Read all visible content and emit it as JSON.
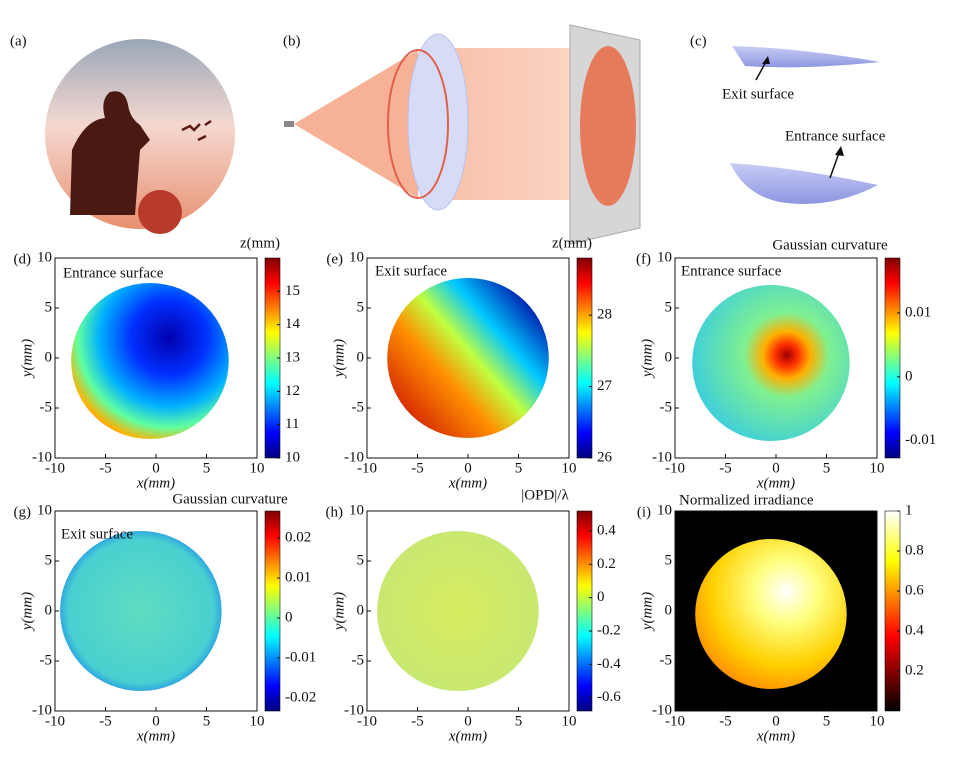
{
  "panels": [
    {
      "label": "(a)"
    },
    {
      "label": "(b)"
    },
    {
      "label": "(c)",
      "annotations": [
        "Exit surface",
        "Entrance surface"
      ]
    }
  ],
  "plots": [
    {
      "label": "(d)",
      "text": "Entrance surface",
      "colorbar_title": "z(mm)",
      "xlabel": "x(mm)",
      "ylabel": "y(mm)",
      "xlim": [
        -10,
        10
      ],
      "xticks": [
        -10,
        -5,
        0,
        5,
        10
      ],
      "ylim": [
        -10,
        10
      ],
      "yticks": [
        -10,
        -5,
        0,
        5,
        10
      ],
      "clim": [
        10,
        16
      ],
      "cticks": [
        10,
        11,
        12,
        13,
        14,
        15
      ],
      "colormap": "jet"
    },
    {
      "label": "(e)",
      "text": "Exit surface",
      "colorbar_title": "z(mm)",
      "xlabel": "x(mm)",
      "ylabel": "y(mm)",
      "xlim": [
        -10,
        10
      ],
      "xticks": [
        -10,
        -5,
        0,
        5,
        10
      ],
      "ylim": [
        -10,
        10
      ],
      "yticks": [
        -10,
        -5,
        0,
        5,
        10
      ],
      "clim": [
        26,
        28.8
      ],
      "cticks": [
        26,
        27,
        28
      ],
      "colormap": "jet"
    },
    {
      "label": "(f)",
      "text": "Entrance surface",
      "colorbar_title": "Gaussian curvature",
      "xlabel": "x(mm)",
      "ylabel": "y(mm)",
      "xlim": [
        -10,
        10
      ],
      "xticks": [
        -10,
        -5,
        0,
        5,
        10
      ],
      "ylim": [
        -10,
        10
      ],
      "yticks": [
        -10,
        -5,
        0,
        5,
        10
      ],
      "clim": [
        -0.0127,
        0.0186
      ],
      "cticks": [
        -0.01,
        0,
        0.01
      ],
      "colormap": "jet"
    },
    {
      "label": "(g)",
      "text": "Exit surface",
      "colorbar_title": "Gaussian curvature",
      "xlabel": "x(mm)",
      "ylabel": "y(mm)",
      "xlim": [
        -10,
        10
      ],
      "xticks": [
        -10,
        -5,
        0,
        5,
        10
      ],
      "ylim": [
        -10,
        10
      ],
      "yticks": [
        -10,
        -5,
        0,
        5,
        10
      ],
      "clim": [
        -0.0233,
        0.0268
      ],
      "cticks": [
        -0.02,
        -0.01,
        0,
        0.01,
        0.02
      ],
      "colormap": "jet"
    },
    {
      "label": "(h)",
      "colorbar_title": "|OPD|/λ",
      "xlabel": "x(mm)",
      "ylabel": "y(mm)",
      "xlim": [
        -10,
        10
      ],
      "xticks": [
        -10,
        -5,
        0,
        5,
        10
      ],
      "ylim": [
        -10,
        10
      ],
      "yticks": [
        -10,
        -5,
        0,
        5,
        10
      ],
      "clim": [
        -0.68,
        0.52
      ],
      "cticks": [
        -0.6,
        -0.4,
        -0.2,
        0,
        0.2,
        0.4
      ],
      "colormap": "jet"
    },
    {
      "label": "(i)",
      "text": "Normalized irradiance",
      "xlabel": "x(mm)",
      "ylabel": "y(mm)",
      "xlim": [
        -10,
        10
      ],
      "xticks": [
        -10,
        -5,
        0,
        5,
        10
      ],
      "ylim": [
        -10,
        10
      ],
      "yticks": [
        -10,
        -5,
        0,
        5,
        10
      ],
      "clim": [
        0,
        1
      ],
      "cticks": [
        0.2,
        0.4,
        0.6,
        0.8,
        1
      ],
      "colormap": "hot"
    }
  ]
}
